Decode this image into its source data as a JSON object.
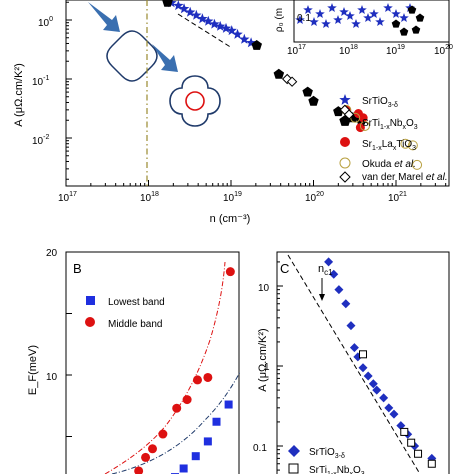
{
  "chart_data": [
    {
      "panel": "A",
      "type": "scatter",
      "xlabel": "n (cm⁻³)",
      "ylabel": "A (μΩ.cm/K²)",
      "xscale": "log",
      "yscale": "log",
      "xlim": [
        1e+17,
        3e+21
      ],
      "ylim": [
        0.002,
        3
      ],
      "x_ticks": [
        "10^17",
        "10^18",
        "10^19",
        "10^20",
        "10^21"
      ],
      "y_ticks": [
        "10^-2",
        "10^-1",
        "10^0"
      ],
      "legend_position": "right",
      "series": [
        {
          "name": "SrTiO3-δ",
          "marker": "star",
          "color": "#1f2fbf",
          "points": [
            [
              1.9e+18,
              1.95
            ],
            [
              2.3e+18,
              1.75
            ],
            [
              2.7e+18,
              1.55
            ],
            [
              3.2e+18,
              1.35
            ],
            [
              3.8e+18,
              1.2
            ],
            [
              4.5e+18,
              1.05
            ],
            [
              5.3e+18,
              0.95
            ],
            [
              6.3e+18,
              0.85
            ],
            [
              7.4e+18,
              0.78
            ],
            [
              8.7e+18,
              0.72
            ],
            [
              1.02e+19,
              0.66
            ],
            [
              1.2e+19,
              0.57
            ],
            [
              1.45e+19,
              0.47
            ],
            [
              1.75e+19,
              0.41
            ]
          ]
        },
        {
          "name": "SrTi1-xNbxO3",
          "marker": "pentagon",
          "color": "#000000",
          "points": [
            [
              1.7e+18,
              2.0
            ],
            [
              2.05e+19,
              0.37
            ],
            [
              3.8e+19,
              0.12
            ],
            [
              8.5e+19,
              0.06
            ],
            [
              1e+20,
              0.042
            ],
            [
              2e+20,
              0.028
            ],
            [
              3e+20,
              0.022
            ],
            [
              3.8e+20,
              0.02
            ]
          ]
        },
        {
          "name": "Sr1-xLaxTiO3",
          "marker": "circle",
          "color": "#dd1111",
          "points": [
            [
              2.5e+20,
              0.03
            ],
            [
              3.5e+20,
              0.026
            ],
            [
              4e+20,
              0.022
            ],
            [
              3.7e+20,
              0.015
            ]
          ]
        },
        {
          "name": "Okuda et al.",
          "marker": "open-circle",
          "color": "#b8a040",
          "points": [
            [
              2.5e+20,
              0.03
            ],
            [
              3.2e+20,
              0.022
            ],
            [
              4.2e+20,
              0.016
            ],
            [
              1.3e+21,
              0.008
            ],
            [
              1.6e+21,
              0.0075
            ],
            [
              1.8e+21,
              0.0035
            ]
          ]
        },
        {
          "name": "van der Marel et al.",
          "marker": "open-diamond",
          "color": "#000000",
          "points": [
            [
              4.8e+19,
              0.1
            ],
            [
              5.5e+19,
              0.09
            ],
            [
              2.4e+20,
              0.03
            ],
            [
              2.7e+20,
              0.025
            ]
          ]
        }
      ],
      "annotations": {
        "dashed_line": "power-law guide",
        "vertical_line": "dash-dot at n ≈ 1.4×10^18 cm^-3"
      }
    },
    {
      "panel": "A-inset",
      "type": "scatter",
      "xscale": "log",
      "ylabel": "ρ₀ (m",
      "x_ticks": [
        "10^17",
        "10^18",
        "10^19",
        "10^20"
      ],
      "y_ticks": [
        "0.1"
      ],
      "series": [
        {
          "name": "SrTiO3-δ",
          "marker": "star",
          "color": "#1f2fbf"
        },
        {
          "name": "SrTi1-xNbxO3",
          "marker": "pentagon",
          "color": "#000000"
        }
      ]
    },
    {
      "panel": "B",
      "type": "scatter",
      "ylabel": "E_F(meV)",
      "ylim": [
        0,
        20
      ],
      "y_ticks": [
        "10",
        "20"
      ],
      "series": [
        {
          "name": "Lowest band",
          "marker": "square",
          "color": "#1f2fdf",
          "points": [
            [
              0.46,
              0.2
            ],
            [
              0.5,
              0.5
            ],
            [
              0.54,
              0.8
            ],
            [
              0.58,
              1.2
            ],
            [
              0.63,
              1.7
            ],
            [
              0.68,
              2.4
            ],
            [
              0.75,
              3.4
            ],
            [
              0.82,
              4.6
            ],
            [
              0.87,
              6.2
            ],
            [
              0.94,
              7.6
            ]
          ]
        },
        {
          "name": "Middle band",
          "marker": "circle",
          "color": "#dd1111",
          "points": [
            [
              0.33,
              0.4
            ],
            [
              0.38,
              1.0
            ],
            [
              0.42,
              2.2
            ],
            [
              0.46,
              3.3
            ],
            [
              0.5,
              4.0
            ],
            [
              0.56,
              5.2
            ],
            [
              0.64,
              7.3
            ],
            [
              0.7,
              8.0
            ],
            [
              0.76,
              9.6
            ],
            [
              0.82,
              9.8
            ],
            [
              0.95,
              18.4
            ]
          ]
        }
      ]
    },
    {
      "panel": "C",
      "type": "scatter",
      "ylabel": "A (μΩ.cm/K²)",
      "yscale": "log",
      "ylim": [
        0.05,
        30
      ],
      "y_ticks": [
        "0.1",
        "1",
        "10"
      ],
      "annotation": "n_c1",
      "series": [
        {
          "name": "SrTiO3-δ",
          "marker": "diamond",
          "color": "#1f2fbf",
          "points": [
            [
              0.3,
              20
            ],
            [
              0.33,
              14
            ],
            [
              0.36,
              9
            ],
            [
              0.4,
              6
            ],
            [
              0.43,
              3.2
            ],
            [
              0.45,
              1.7
            ],
            [
              0.47,
              1.3
            ],
            [
              0.5,
              0.95
            ],
            [
              0.53,
              0.75
            ],
            [
              0.56,
              0.6
            ],
            [
              0.58,
              0.5
            ],
            [
              0.62,
              0.4
            ],
            [
              0.65,
              0.3
            ],
            [
              0.68,
              0.25
            ],
            [
              0.72,
              0.18
            ],
            [
              0.76,
              0.14
            ],
            [
              0.8,
              0.1
            ],
            [
              0.9,
              0.07
            ]
          ]
        },
        {
          "name": "SrTi1-xNbxO3",
          "marker": "open-square",
          "color": "#000000",
          "points": [
            [
              0.5,
              1.4
            ],
            [
              0.74,
              0.15
            ],
            [
              0.78,
              0.11
            ],
            [
              0.82,
              0.08
            ],
            [
              0.9,
              0.06
            ]
          ]
        }
      ]
    }
  ],
  "panel_labels": {
    "b": "B",
    "c": "C"
  },
  "legends": {
    "a": [
      {
        "base": "SrTiO",
        "sub": "3-δ"
      },
      {
        "parts": [
          [
            "SrTi",
            ""
          ],
          [
            "1-x",
            "sub"
          ],
          [
            "Nb",
            ""
          ],
          [
            "x",
            "sub"
          ],
          [
            "O",
            ""
          ],
          [
            "3",
            "sub"
          ]
        ]
      },
      {
        "parts": [
          [
            "Sr",
            ""
          ],
          [
            "1-x",
            "sub"
          ],
          [
            "La",
            ""
          ],
          [
            "x",
            "sub"
          ],
          [
            "TiO",
            ""
          ],
          [
            "3",
            "sub"
          ]
        ]
      },
      {
        "parts": [
          [
            "Okuda ",
            ""
          ],
          [
            "et al.",
            "it"
          ]
        ]
      },
      {
        "parts": [
          [
            "van der Marel ",
            ""
          ],
          [
            "et al.",
            "it"
          ]
        ]
      }
    ],
    "b": [
      "Lowest band",
      "Middle band"
    ],
    "c": [
      {
        "parts": [
          [
            "SrTiO",
            ""
          ],
          [
            "3-δ",
            "sub"
          ]
        ]
      },
      {
        "parts": [
          [
            "SrTi",
            ""
          ],
          [
            "1-x",
            "sub"
          ],
          [
            "Nb",
            ""
          ],
          [
            "x",
            "sub"
          ],
          [
            "O",
            ""
          ],
          [
            "3",
            "sub"
          ]
        ]
      }
    ]
  },
  "axis_text": {
    "a_xlabel": "n (cm⁻³)",
    "a_ylabel": "A (μΩ.cm/K²)",
    "a_xticks": [
      "10",
      "10",
      "10",
      "10",
      "10"
    ],
    "a_xexp": [
      "17",
      "18",
      "19",
      "20",
      "21"
    ],
    "a_yticks": [
      "10",
      "10",
      "10"
    ],
    "a_yexp": [
      "0",
      "-1",
      "-2"
    ],
    "inset_xticks": [
      "10",
      "10",
      "10",
      "10"
    ],
    "inset_xexp": [
      "17",
      "18",
      "19",
      "20"
    ],
    "inset_ytick": "0.1",
    "inset_ylabel": "ρ₀ (m",
    "b_ylabel": "E_F(meV)",
    "b_yticks": [
      "20",
      "10"
    ],
    "c_ylabel": "A (μΩ.cm/K²)",
    "c_yticks": [
      "10",
      "1",
      "0.1"
    ],
    "c_annot": "n",
    "c_annot_sub": "c1"
  },
  "colors": {
    "blue": "#1f2fbf",
    "red": "#dd1111",
    "black": "#000000",
    "olive": "#b8a040",
    "arrow": "#3a6fb0",
    "vline": "#9a8a30"
  }
}
